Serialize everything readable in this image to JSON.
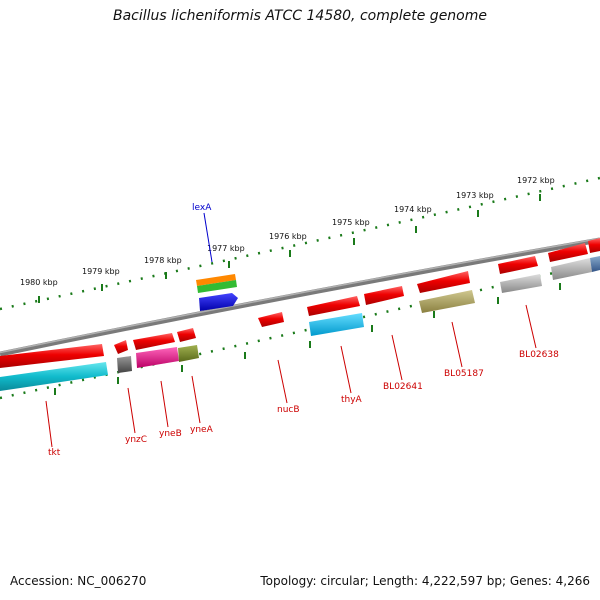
{
  "title": "Bacillus licheniformis ATCC 14580, complete genome",
  "footer": {
    "accession": "Accession: NC_006270",
    "summary": "Topology: circular; Length: 4,222,597 bp; Genes: 4,266"
  },
  "ruler": {
    "ticks": [
      "1980 kbp",
      "1979 kbp",
      "1978 kbp",
      "1977 kbp",
      "1976 kbp",
      "1975 kbp",
      "1974 kbp",
      "1973 kbp",
      "1972 kbp"
    ]
  },
  "genes": {
    "lexA": "lexA",
    "tkt": "tkt",
    "ynzC": "ynzC",
    "yneB": "yneB",
    "yneA": "yneA",
    "nucB": "nucB",
    "thyA": "thyA",
    "BL02641": "BL02641",
    "BL05187": "BL05187",
    "BL02638": "BL02638"
  },
  "colors": {
    "backbone": "#808080",
    "ruler": "#1a7a1a",
    "label_red": "#cc0000",
    "label_blue": "#0000cc",
    "gene_red": "#ee0000",
    "gene_cyan": "#11bbcc",
    "gene_gray": "#666666",
    "gene_pink": "#ee1188",
    "gene_olive": "#7a8a2a",
    "gene_orange": "#ff8800",
    "gene_green": "#33bb33",
    "gene_blue": "#0000ee",
    "gene_sky": "#00bbee",
    "gene_khaki": "#aaa060",
    "gene_silver": "#aaaaaa",
    "gene_steel": "#5577aa"
  }
}
